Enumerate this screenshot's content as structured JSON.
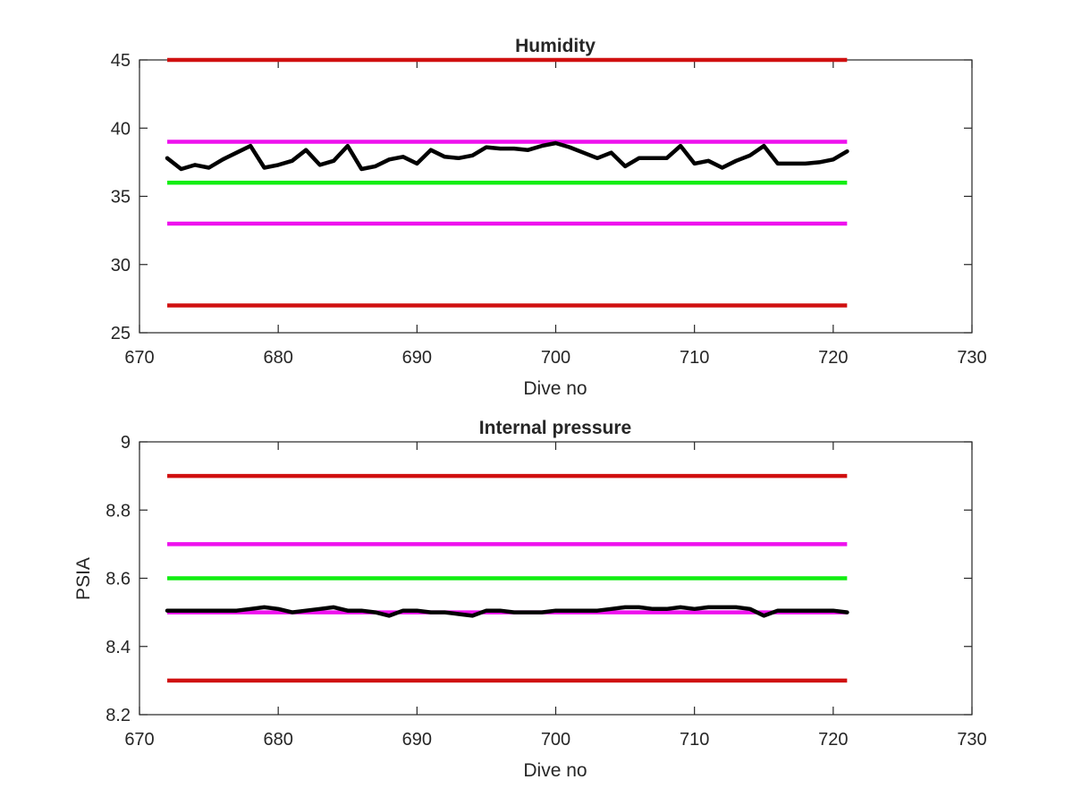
{
  "chart_data": [
    {
      "type": "line",
      "title": "Humidity",
      "xlabel": "Dive no",
      "ylabel": "",
      "xlim": [
        670,
        730
      ],
      "ylim": [
        25,
        45
      ],
      "xticks": [
        670,
        680,
        690,
        700,
        710,
        720,
        730
      ],
      "yticks": [
        25,
        30,
        35,
        40,
        45
      ],
      "xtick_labels": [
        "670",
        "680",
        "690",
        "700",
        "710",
        "720",
        "730"
      ],
      "ytick_labels": [
        "25",
        "30",
        "35",
        "40",
        "45"
      ],
      "grid": false,
      "reference_lines": [
        {
          "y": 45,
          "x": [
            672,
            721
          ],
          "color": "#d01010"
        },
        {
          "y": 39,
          "x": [
            672,
            721
          ],
          "color": "#ee11ee"
        },
        {
          "y": 36,
          "x": [
            672,
            721
          ],
          "color": "#11ee11"
        },
        {
          "y": 33,
          "x": [
            672,
            721
          ],
          "color": "#ee11ee"
        },
        {
          "y": 27,
          "x": [
            672,
            721
          ],
          "color": "#d01010"
        }
      ],
      "series": [
        {
          "color": "#000000",
          "x": [
            672,
            673,
            674,
            675,
            676,
            677,
            678,
            679,
            680,
            681,
            682,
            683,
            684,
            685,
            686,
            687,
            688,
            689,
            690,
            691,
            692,
            693,
            694,
            695,
            696,
            697,
            698,
            699,
            700,
            701,
            702,
            703,
            704,
            705,
            706,
            707,
            708,
            709,
            710,
            711,
            712,
            713,
            714,
            715,
            716,
            717,
            718,
            719,
            720,
            721
          ],
          "values": [
            37.8,
            37.0,
            37.3,
            37.1,
            37.7,
            38.2,
            38.7,
            37.1,
            37.3,
            37.6,
            38.4,
            37.3,
            37.6,
            38.7,
            37.0,
            37.2,
            37.7,
            37.9,
            37.4,
            38.4,
            37.9,
            37.8,
            38.0,
            38.6,
            38.5,
            38.5,
            38.4,
            38.7,
            38.9,
            38.6,
            38.2,
            37.8,
            38.2,
            37.2,
            37.8,
            37.8,
            37.8,
            38.7,
            37.4,
            37.6,
            37.1,
            37.6,
            38.0,
            38.7,
            37.4,
            37.4,
            37.4,
            37.5,
            37.7,
            38.3
          ]
        }
      ]
    },
    {
      "type": "line",
      "title": "Internal pressure",
      "xlabel": "Dive no",
      "ylabel": "PSIA",
      "xlim": [
        670,
        730
      ],
      "ylim": [
        8.2,
        9
      ],
      "xticks": [
        670,
        680,
        690,
        700,
        710,
        720,
        730
      ],
      "yticks": [
        8.2,
        8.4,
        8.6,
        8.8,
        9
      ],
      "xtick_labels": [
        "670",
        "680",
        "690",
        "700",
        "710",
        "720",
        "730"
      ],
      "ytick_labels": [
        "8.2",
        "8.4",
        "8.6",
        "8.8",
        "9"
      ],
      "grid": false,
      "reference_lines": [
        {
          "y": 8.9,
          "x": [
            672,
            721
          ],
          "color": "#d01010"
        },
        {
          "y": 8.7,
          "x": [
            672,
            721
          ],
          "color": "#ee11ee"
        },
        {
          "y": 8.6,
          "x": [
            672,
            721
          ],
          "color": "#11ee11"
        },
        {
          "y": 8.5,
          "x": [
            672,
            721
          ],
          "color": "#ee11ee"
        },
        {
          "y": 8.3,
          "x": [
            672,
            721
          ],
          "color": "#d01010"
        }
      ],
      "series": [
        {
          "color": "#000000",
          "x": [
            672,
            673,
            674,
            675,
            676,
            677,
            678,
            679,
            680,
            681,
            682,
            683,
            684,
            685,
            686,
            687,
            688,
            689,
            690,
            691,
            692,
            693,
            694,
            695,
            696,
            697,
            698,
            699,
            700,
            701,
            702,
            703,
            704,
            705,
            706,
            707,
            708,
            709,
            710,
            711,
            712,
            713,
            714,
            715,
            716,
            717,
            718,
            719,
            720,
            721
          ],
          "values": [
            8.505,
            8.505,
            8.505,
            8.505,
            8.505,
            8.505,
            8.51,
            8.515,
            8.51,
            8.5,
            8.505,
            8.51,
            8.515,
            8.505,
            8.505,
            8.5,
            8.49,
            8.505,
            8.505,
            8.5,
            8.5,
            8.495,
            8.49,
            8.505,
            8.505,
            8.5,
            8.5,
            8.5,
            8.505,
            8.505,
            8.505,
            8.505,
            8.51,
            8.515,
            8.515,
            8.51,
            8.51,
            8.515,
            8.51,
            8.515,
            8.515,
            8.515,
            8.51,
            8.49,
            8.505,
            8.505,
            8.505,
            8.505,
            8.505,
            8.5
          ]
        }
      ]
    }
  ]
}
